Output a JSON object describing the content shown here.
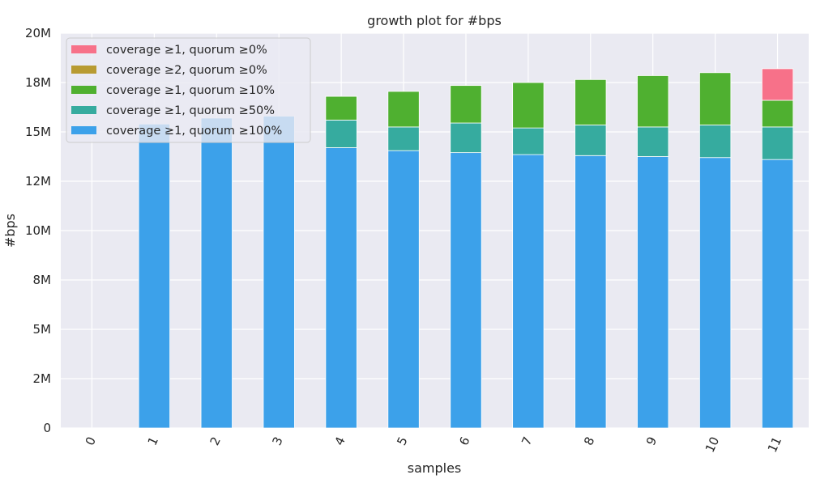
{
  "chart_data": {
    "type": "bar",
    "stacked": true,
    "title": "growth plot for #bps",
    "xlabel": "samples",
    "ylabel": "#bps",
    "ylim": [
      0,
      20000000
    ],
    "yticks": [
      0,
      2500000,
      5000000,
      7500000,
      10000000,
      12500000,
      15000000,
      17500000,
      20000000
    ],
    "ytick_labels": [
      "0",
      "2M",
      "5M",
      "8M",
      "10M",
      "12M",
      "15M",
      "18M",
      "20M"
    ],
    "categories": [
      "0",
      "1",
      "2",
      "3",
      "4",
      "5",
      "6",
      "7",
      "8",
      "9",
      "10",
      "11"
    ],
    "grid": true,
    "legend_position": "top-left",
    "series": [
      {
        "name": "coverage ≥1, quorum ≥100%",
        "color": "#3ca1ea",
        "values": [
          0,
          15400000,
          15700000,
          15800000,
          14200000,
          14050000,
          13950000,
          13850000,
          13800000,
          13750000,
          13700000,
          13600000
        ]
      },
      {
        "name": "coverage ≥1, quorum ≥50%",
        "color": "#36ab9f",
        "values": [
          0,
          0,
          0,
          0,
          1400000,
          1200000,
          1500000,
          1350000,
          1550000,
          1500000,
          1650000,
          1650000
        ]
      },
      {
        "name": "coverage ≥1, quorum ≥10%",
        "color": "#4fb030",
        "values": [
          0,
          0,
          0,
          0,
          1200000,
          1800000,
          1900000,
          2300000,
          2300000,
          2600000,
          2650000,
          1350000
        ]
      },
      {
        "name": "coverage ≥2, quorum ≥0%",
        "color": "#b89b32",
        "values": [
          0,
          0,
          0,
          0,
          0,
          0,
          0,
          0,
          0,
          0,
          0,
          0
        ]
      },
      {
        "name": "coverage ≥1, quorum ≥0%",
        "color": "#f77189",
        "values": [
          0,
          0,
          0,
          0,
          0,
          0,
          0,
          0,
          0,
          0,
          0,
          1600000
        ]
      }
    ]
  }
}
